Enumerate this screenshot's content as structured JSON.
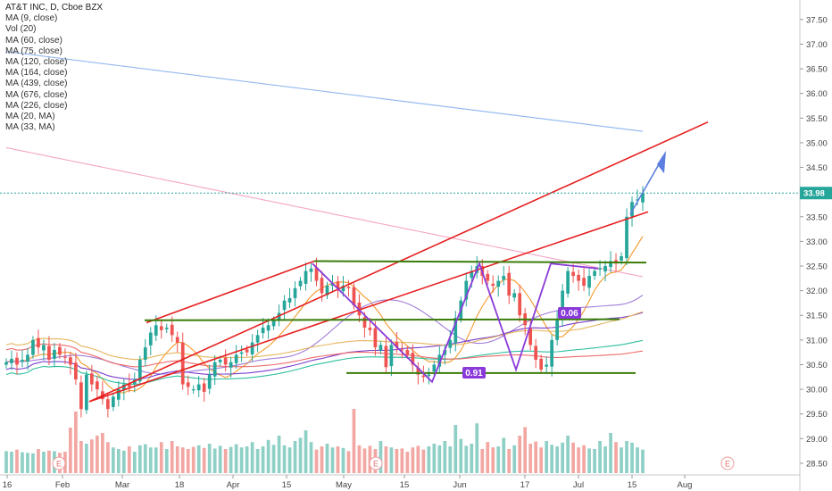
{
  "title": "AT&T INC, D, Cboe BZX",
  "indicators": [
    "MA (9, close)",
    "Vol (20)",
    "MA (60, close)",
    "MA (75, close)",
    "MA (120, close)",
    "MA (164, close)",
    "MA (439, close)",
    "MA (676, close)",
    "MA (226, close)",
    "MA (20, MA)",
    "MA (33, MA)"
  ],
  "price_tag": "33.98",
  "annotations": {
    "low_box": "0.91",
    "mid_box": "0.06"
  },
  "earnings_marker": "E",
  "colors": {
    "up": "#26a69a",
    "down": "#ef5350",
    "channel": "#e62020",
    "support": "#3a7d0a",
    "pattern": "#8a3ad8",
    "target": "#5b7fe0"
  },
  "chart_data": {
    "type": "candlestick",
    "ylim": [
      28.3,
      37.75
    ],
    "y_ticks": [
      "37.50",
      "37.00",
      "36.50",
      "36.00",
      "35.50",
      "35.00",
      "34.50",
      "34.00",
      "33.50",
      "33.00",
      "32.50",
      "32.00",
      "31.50",
      "31.00",
      "30.50",
      "30.00",
      "29.50",
      "29.00",
      "28.50"
    ],
    "x_ticks": [
      "16",
      "Feb",
      "Mar",
      "18",
      "Apr",
      "15",
      "May",
      "15",
      "Jun",
      "17",
      "Jul",
      "15",
      "Aug"
    ],
    "closes": [
      30.55,
      30.62,
      30.5,
      30.6,
      30.7,
      31.0,
      30.85,
      30.9,
      30.6,
      30.8,
      30.7,
      30.65,
      30.5,
      30.2,
      29.6,
      30.3,
      30.1,
      30.0,
      29.8,
      29.6,
      29.85,
      30.0,
      30.1,
      30.05,
      30.2,
      30.6,
      30.85,
      31.15,
      31.3,
      31.2,
      31.25,
      31.1,
      30.95,
      30.1,
      30.05,
      30.0,
      30.1,
      29.95,
      30.3,
      30.55,
      30.6,
      30.5,
      30.55,
      30.7,
      30.75,
      30.75,
      30.95,
      31.1,
      31.25,
      31.3,
      31.4,
      31.55,
      31.8,
      31.85,
      32.05,
      32.2,
      32.4,
      32.45,
      32.2,
      31.95,
      32.1,
      32.15,
      32.05,
      32.1,
      32.05,
      31.7,
      31.5,
      31.25,
      31.2,
      30.85,
      30.9,
      30.45,
      30.9,
      30.85,
      30.8,
      30.7,
      30.5,
      30.3,
      30.25,
      30.3,
      30.5,
      30.7,
      30.8,
      31.0,
      31.45,
      31.8,
      32.2,
      32.4,
      32.5,
      32.3,
      32.2,
      32.1,
      32.2,
      32.3,
      31.9,
      31.95,
      31.5,
      31.3,
      30.9,
      30.6,
      30.4,
      30.5,
      31.0,
      31.4,
      32.0,
      32.4,
      32.3,
      32.2,
      32.1,
      32.3,
      32.4,
      32.45,
      32.5,
      32.6,
      32.55,
      32.7,
      33.5,
      33.8,
      33.85,
      33.98
    ],
    "volumes": [
      41,
      40,
      44,
      39,
      38,
      37,
      45,
      40,
      42,
      41,
      38,
      40,
      85,
      115,
      60,
      55,
      63,
      70,
      75,
      58,
      48,
      45,
      42,
      50,
      40,
      52,
      54,
      48,
      48,
      58,
      45,
      60,
      50,
      48,
      45,
      49,
      52,
      47,
      55,
      46,
      51,
      45,
      49,
      54,
      48,
      50,
      58,
      45,
      50,
      62,
      53,
      70,
      52,
      48,
      60,
      66,
      80,
      58,
      44,
      50,
      55,
      48,
      50,
      47,
      41,
      120,
      52,
      46,
      51,
      45,
      60,
      50,
      48,
      45,
      46,
      40,
      48,
      51,
      44,
      50,
      55,
      52,
      60,
      50,
      90,
      64,
      51,
      55,
      93,
      45,
      58,
      48,
      50,
      66,
      45,
      52,
      70,
      86,
      55,
      59,
      48,
      60,
      53,
      50,
      57,
      70,
      57,
      48,
      52,
      46,
      45,
      60,
      50,
      75,
      58,
      48,
      60,
      57,
      48,
      44
    ],
    "series": [
      {
        "name": "MA (9, close)",
        "color": "#f39a2b"
      },
      {
        "name": "MA (20, MA)",
        "color": "#a07cd8"
      },
      {
        "name": "MA (60, close)",
        "color": "#7b3ecf"
      },
      {
        "name": "MA (75, close)",
        "color": "#e6b65f"
      },
      {
        "name": "MA (120, close)",
        "color": "#2fbf9e"
      },
      {
        "name": "MA (164, close)",
        "color": "#ef6b6b"
      },
      {
        "name": "MA (226, close)",
        "color": "#f4a6c7"
      },
      {
        "name": "MA (439, close)",
        "color": "#8fb5ef"
      }
    ]
  }
}
